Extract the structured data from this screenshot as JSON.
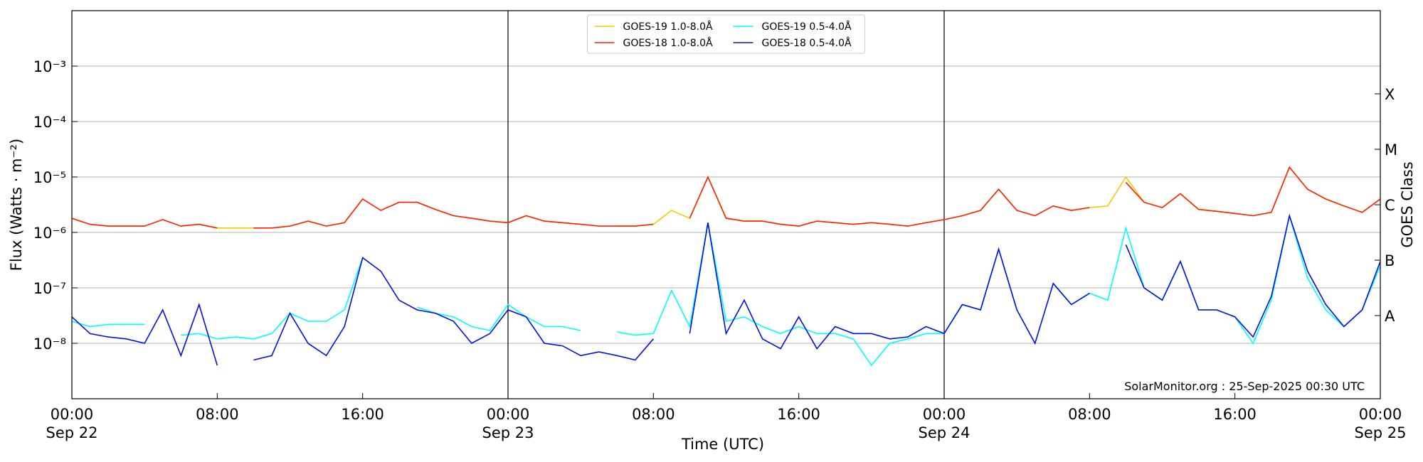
{
  "chart_data": {
    "type": "line",
    "ylabel": "Flux (Watts · m⁻²)",
    "xlabel": "Time (UTC)",
    "y2label": "GOES Class",
    "annotation": "SolarMonitor.org : 25-Sep-2025 00:30 UTC",
    "log_y": true,
    "grid": true,
    "legend": "upper center",
    "x": [
      "Sep 22 00:00",
      "Sep 22 01:00",
      "Sep 22 02:00",
      "Sep 22 03:00",
      "Sep 22 04:00",
      "Sep 22 05:00",
      "Sep 22 06:00",
      "Sep 22 07:00",
      "Sep 22 08:00",
      "Sep 22 09:00",
      "Sep 22 10:00",
      "Sep 22 11:00",
      "Sep 22 12:00",
      "Sep 22 13:00",
      "Sep 22 14:00",
      "Sep 22 15:00",
      "Sep 22 16:00",
      "Sep 22 17:00",
      "Sep 22 18:00",
      "Sep 22 19:00",
      "Sep 22 20:00",
      "Sep 22 21:00",
      "Sep 22 22:00",
      "Sep 22 23:00",
      "Sep 23 00:00",
      "Sep 23 01:00",
      "Sep 23 02:00",
      "Sep 23 03:00",
      "Sep 23 04:00",
      "Sep 23 05:00",
      "Sep 23 06:00",
      "Sep 23 07:00",
      "Sep 23 08:00",
      "Sep 23 09:00",
      "Sep 23 10:00",
      "Sep 23 11:00",
      "Sep 23 12:00",
      "Sep 23 13:00",
      "Sep 23 14:00",
      "Sep 23 15:00",
      "Sep 23 16:00",
      "Sep 23 17:00",
      "Sep 23 18:00",
      "Sep 23 19:00",
      "Sep 23 20:00",
      "Sep 23 21:00",
      "Sep 23 22:00",
      "Sep 23 23:00",
      "Sep 24 00:00",
      "Sep 24 01:00",
      "Sep 24 02:00",
      "Sep 24 03:00",
      "Sep 24 04:00",
      "Sep 24 05:00",
      "Sep 24 06:00",
      "Sep 24 07:00",
      "Sep 24 08:00",
      "Sep 24 09:00",
      "Sep 24 10:00",
      "Sep 24 11:00",
      "Sep 24 12:00",
      "Sep 24 13:00",
      "Sep 24 14:00",
      "Sep 24 15:00",
      "Sep 24 16:00",
      "Sep 24 17:00",
      "Sep 24 18:00",
      "Sep 24 19:00",
      "Sep 24 20:00",
      "Sep 24 21:00",
      "Sep 24 22:00",
      "Sep 24 23:00",
      "Sep 25 00:00"
    ],
    "xlim": [
      "Sep 22 00:00",
      "Sep 25 00:00"
    ],
    "xticks": [
      {
        "value": "Sep 22 00:00",
        "label": "00:00\nSep 22"
      },
      {
        "value": "Sep 22 08:00",
        "label": "08:00"
      },
      {
        "value": "Sep 22 16:00",
        "label": "16:00"
      },
      {
        "value": "Sep 23 00:00",
        "label": "00:00\nSep 23"
      },
      {
        "value": "Sep 23 08:00",
        "label": "08:00"
      },
      {
        "value": "Sep 23 16:00",
        "label": "16:00"
      },
      {
        "value": "Sep 24 00:00",
        "label": "00:00\nSep 24"
      },
      {
        "value": "Sep 24 08:00",
        "label": "08:00"
      },
      {
        "value": "Sep 24 16:00",
        "label": "16:00"
      },
      {
        "value": "Sep 25 00:00",
        "label": "00:00\nSep 25"
      }
    ],
    "vlines": [
      "Sep 23 00:00",
      "Sep 24 00:00"
    ],
    "ylim": [
      1e-09,
      0.01
    ],
    "yticks": [
      {
        "value": 1e-08,
        "label": "10⁻⁸"
      },
      {
        "value": 1e-07,
        "label": "10⁻⁷"
      },
      {
        "value": 1e-06,
        "label": "10⁻⁶"
      },
      {
        "value": 1e-05,
        "label": "10⁻⁵"
      },
      {
        "value": 0.0001,
        "label": "10⁻⁴"
      },
      {
        "value": 0.001,
        "label": "10⁻³"
      }
    ],
    "y2lim": [
      1e-09,
      0.01
    ],
    "y2ticks": [
      {
        "value": 3.16e-08,
        "label": "A"
      },
      {
        "value": 3.16e-07,
        "label": "B"
      },
      {
        "value": 3.16e-06,
        "label": "C"
      },
      {
        "value": 3.16e-05,
        "label": "M"
      },
      {
        "value": 0.000316,
        "label": "X"
      }
    ],
    "series": [
      {
        "name": "GOES-19 1.0-8.0Å",
        "color": "#f2cc00",
        "values": [
          1.8e-06,
          1.4e-06,
          1.3e-06,
          1.3e-06,
          1.3e-06,
          null,
          1.3e-06,
          1.4e-06,
          1.2e-06,
          1.2e-06,
          1.2e-06,
          1.2e-06,
          1.3e-06,
          1.6e-06,
          1.3e-06,
          1.5e-06,
          4e-06,
          null,
          null,
          3.5e-06,
          2.6e-06,
          2e-06,
          1.8e-06,
          1.6e-06,
          1.5e-06,
          2e-06,
          1.6e-06,
          1.5e-06,
          1.4e-06,
          null,
          1.3e-06,
          1.3e-06,
          1.4e-06,
          2.5e-06,
          1.8e-06,
          1e-05,
          1.8e-06,
          1.6e-06,
          1.6e-06,
          1.4e-06,
          1.3e-06,
          1.6e-06,
          1.5e-06,
          1.4e-06,
          1.5e-06,
          1.4e-06,
          1.3e-06,
          1.5e-06,
          1.7e-06,
          2e-06,
          2.5e-06,
          6e-06,
          2.5e-06,
          null,
          3e-06,
          2.5e-06,
          2.8e-06,
          3e-06,
          1e-05,
          3.5e-06,
          2.8e-06,
          5e-06,
          2.6e-06,
          2.4e-06,
          2.2e-06,
          2e-06,
          2.3e-06,
          1.5e-05,
          6e-06,
          4e-06,
          3e-06,
          2.3e-06,
          4e-06
        ]
      },
      {
        "name": "GOES-18 1.0-8.0Å",
        "color": "#ff2000",
        "values": [
          1.8e-06,
          1.4e-06,
          1.3e-06,
          1.3e-06,
          1.3e-06,
          1.7e-06,
          1.3e-06,
          1.4e-06,
          1.2e-06,
          null,
          1.2e-06,
          1.2e-06,
          1.3e-06,
          1.6e-06,
          1.3e-06,
          1.5e-06,
          4e-06,
          2.5e-06,
          3.5e-06,
          3.5e-06,
          2.6e-06,
          2e-06,
          1.8e-06,
          1.6e-06,
          1.5e-06,
          2e-06,
          1.6e-06,
          1.5e-06,
          1.4e-06,
          1.3e-06,
          1.3e-06,
          1.3e-06,
          1.4e-06,
          null,
          1.8e-06,
          1e-05,
          1.8e-06,
          1.6e-06,
          1.6e-06,
          1.4e-06,
          1.3e-06,
          1.6e-06,
          1.5e-06,
          1.4e-06,
          1.5e-06,
          1.4e-06,
          1.3e-06,
          1.5e-06,
          1.7e-06,
          2e-06,
          2.5e-06,
          6e-06,
          2.5e-06,
          2e-06,
          3e-06,
          2.5e-06,
          2.8e-06,
          null,
          8e-06,
          3.5e-06,
          2.8e-06,
          5e-06,
          2.6e-06,
          2.4e-06,
          2.2e-06,
          2e-06,
          2.3e-06,
          1.5e-05,
          6e-06,
          4e-06,
          3e-06,
          2.3e-06,
          4e-06
        ]
      },
      {
        "name": "GOES-19 0.5-4.0Å",
        "color": "#00ffff",
        "values": [
          2.5e-08,
          2e-08,
          2.2e-08,
          2.2e-08,
          2.2e-08,
          null,
          1.4e-08,
          1.5e-08,
          1.2e-08,
          1.3e-08,
          1.2e-08,
          1.5e-08,
          3.5e-08,
          2.5e-08,
          2.5e-08,
          4e-08,
          3.5e-07,
          null,
          null,
          4.5e-08,
          3.5e-08,
          3e-08,
          2e-08,
          1.7e-08,
          5e-08,
          3e-08,
          2e-08,
          2e-08,
          1.7e-08,
          null,
          1.6e-08,
          1.4e-08,
          1.5e-08,
          9e-08,
          2e-08,
          1.5e-06,
          2.5e-08,
          3e-08,
          2e-08,
          1.5e-08,
          2e-08,
          1.5e-08,
          1.5e-08,
          1.2e-08,
          4e-09,
          1e-08,
          1.2e-08,
          1.5e-08,
          1.5e-08,
          5e-08,
          4e-08,
          5e-07,
          4e-08,
          null,
          1.2e-07,
          5e-08,
          8e-08,
          6e-08,
          1.2e-06,
          1e-07,
          6e-08,
          3e-07,
          4e-08,
          4e-08,
          3e-08,
          1e-08,
          6e-08,
          2e-06,
          1.5e-07,
          4e-08,
          2e-08,
          4e-08,
          2.5e-07
        ]
      },
      {
        "name": "GOES-18 0.5-4.0Å",
        "color": "#0010e0",
        "values": [
          3e-08,
          1.5e-08,
          1.3e-08,
          1.2e-08,
          1e-08,
          4e-08,
          6e-09,
          5e-08,
          4e-09,
          null,
          5e-09,
          6e-09,
          3.5e-08,
          1e-08,
          6e-09,
          2e-08,
          3.5e-07,
          2e-07,
          6e-08,
          4e-08,
          3.5e-08,
          2.5e-08,
          1e-08,
          1.5e-08,
          4e-08,
          3e-08,
          1e-08,
          9e-09,
          6e-09,
          7e-09,
          6e-09,
          5e-09,
          1.2e-08,
          null,
          1.5e-08,
          1.5e-06,
          1.5e-08,
          6e-08,
          1.2e-08,
          8e-09,
          3e-08,
          8e-09,
          2e-08,
          1.5e-08,
          1.5e-08,
          1.2e-08,
          1.3e-08,
          2e-08,
          1.5e-08,
          5e-08,
          4e-08,
          5e-07,
          4e-08,
          1e-08,
          1.2e-07,
          5e-08,
          8e-08,
          null,
          6e-07,
          1e-07,
          6e-08,
          3e-07,
          4e-08,
          4e-08,
          3e-08,
          1.3e-08,
          7e-08,
          2e-06,
          2e-07,
          5e-08,
          2e-08,
          4e-08,
          3e-07
        ]
      }
    ]
  }
}
